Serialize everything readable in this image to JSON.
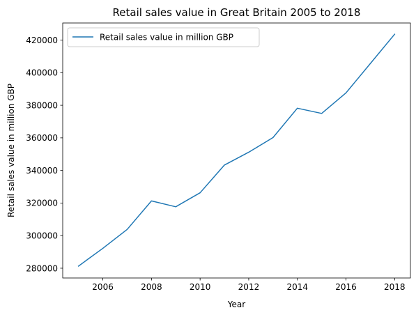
{
  "chart_data": {
    "type": "line",
    "title": "Retail sales value in Great Britain 2005 to 2018",
    "xlabel": "Year",
    "ylabel": "Retail sales value in million GBP",
    "x_ticks": [
      2006,
      2008,
      2010,
      2012,
      2014,
      2016,
      2018
    ],
    "y_ticks": [
      280000,
      300000,
      320000,
      340000,
      360000,
      380000,
      400000,
      420000
    ],
    "xlim": [
      2004.35,
      2018.65
    ],
    "ylim": [
      274000,
      430500
    ],
    "grid": false,
    "legend_position": "top-left",
    "series": [
      {
        "name": "Retail sales value in million GBP",
        "color": "#1f77b4",
        "x": [
          2005,
          2006,
          2007,
          2008,
          2009,
          2010,
          2011,
          2012,
          2013,
          2014,
          2015,
          2016,
          2017,
          2018
        ],
        "y": [
          281300,
          292200,
          303800,
          321300,
          317700,
          326300,
          343300,
          351200,
          360200,
          378200,
          375000,
          387600,
          405600,
          423600
        ]
      }
    ]
  }
}
